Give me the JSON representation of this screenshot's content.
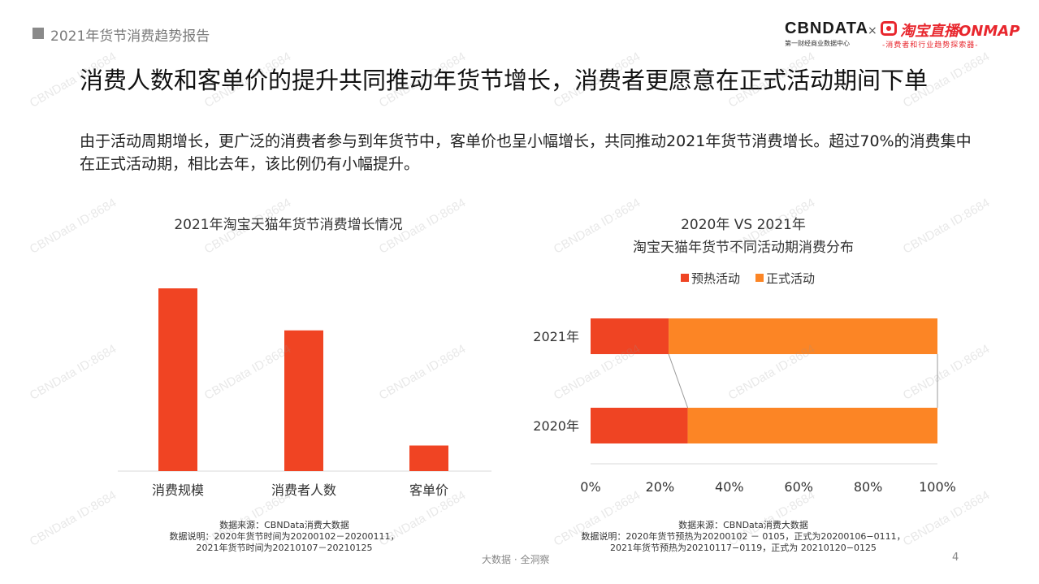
{
  "header": {
    "title": "2021年货节消费趋势报告",
    "logo_cbn": "CBNDATA",
    "logo_cbn_sub": "第一财经商业数据中心",
    "logo_x": "×",
    "logo_taobao": "淘宝直播ONMAP",
    "logo_taobao_sub": "-消费者和行业趋势探索器-"
  },
  "title": "消费人数和客单价的提升共同推动年货节增长，消费者更愿意在正式活动期间下单",
  "subtitle": "由于活动周期增长，更广泛的消费者参与到年货节中，客单价也呈小幅增长，共同推动2021年货节消费增长。超过70%的消费集中在正式活动期，相比去年，该比例仍有小幅提升。",
  "left_chart": {
    "note_line1": "数据来源：CBNData消费大数据",
    "note_line2": "数据说明：2020年货节时间为20200102－20200111，",
    "note_line3": "2021年货节时间为20210107－20210125"
  },
  "right_chart": {
    "note_line1": "数据来源：CBNData消费大数据",
    "note_line2": "数据说明：2020年货节预热为20200102 － 0105，正式为20200106−0111，",
    "note_line3": "2021年货节预热为20210117−0119，正式为 20210120−0125"
  },
  "footer": "大数据 · 全洞察",
  "page_number": "4",
  "watermark": "CBNData ID:8684",
  "chart_data": [
    {
      "type": "bar",
      "title": "2021年淘宝天猫年货节消费增长情况",
      "categories": [
        "消费规模",
        "消费者人数",
        "客单价"
      ],
      "values": [
        1.0,
        0.77,
        0.14
      ],
      "ylim": [
        0,
        1.0
      ],
      "grid": false,
      "color": "#f04423"
    },
    {
      "type": "bar",
      "orientation": "horizontal",
      "stacked": true,
      "title": "2020年 VS 2021年",
      "subtitle": "淘宝天猫年货节不同活动期消费分布",
      "categories": [
        "2021年",
        "2020年"
      ],
      "series": [
        {
          "name": "预热活动",
          "values": [
            22.5,
            28
          ],
          "color": "#ef4423"
        },
        {
          "name": "正式活动",
          "values": [
            77.5,
            72
          ],
          "color": "#fc8525"
        }
      ],
      "x_ticks": [
        "0%",
        "20%",
        "40%",
        "60%",
        "80%",
        "100%"
      ],
      "xlim": [
        0,
        100
      ],
      "legend": "top",
      "grid": false
    }
  ]
}
